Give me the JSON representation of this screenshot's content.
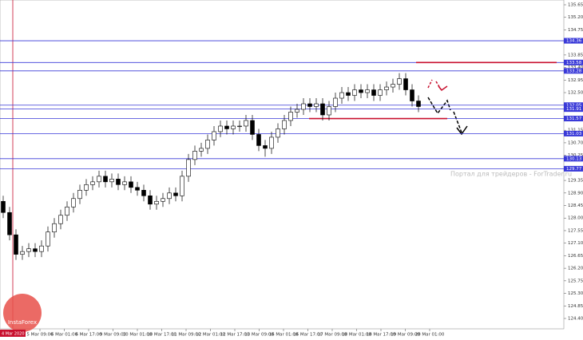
{
  "chart_data": {
    "type": "candlestick",
    "ylim": [
      124.4,
      135.65
    ],
    "yticks": [
      135.65,
      {
        "value": 135.2,
        "label": "135.20"
      },
      134.75,
      {
        "value": 134.3,
        "label": "134.30"
      },
      133.85,
      {
        "value": 133.4,
        "label": "133.40"
      },
      132.95,
      {
        "value": 132.5,
        "label": "132.50"
      },
      132.05,
      {
        "value": 131.6,
        "label": "131.60"
      },
      131.15,
      {
        "value": 130.7,
        "label": "130.70"
      },
      130.25,
      {
        "value": 129.8,
        "label": "129.80"
      },
      129.35,
      {
        "value": 128.9,
        "label": "128.90"
      },
      128.45,
      {
        "value": 128.0,
        "label": "128.00"
      },
      127.55,
      {
        "value": 127.1,
        "label": "127.10"
      },
      126.65,
      {
        "value": 126.2,
        "label": "126.20"
      },
      125.75,
      {
        "value": 125.3,
        "label": "125.30"
      },
      124.85,
      {
        "value": 124.4,
        "label": "124.40"
      }
    ],
    "time_labels": [
      "5 Mar 09:00",
      "6 Mar 01:00",
      "6 Mar 17:00",
      "9 Mar 09:00",
      "10 Mar 01:00",
      "10 Mar 17:00",
      "11 Mar 09:00",
      "12 Mar 01:00",
      "12 Mar 17:00",
      "13 Mar 09:00",
      "16 Mar 01:00",
      "16 Mar 17:00",
      "17 Mar 09:00",
      "18 Mar 01:00",
      "18 Mar 17:00",
      "19 Mar 09:00",
      "20 Mar 01:00"
    ],
    "start_label": "4 Mar 2020",
    "levels": [
      134.36,
      133.58,
      133.28,
      132.05,
      131.91,
      131.57,
      131.03,
      130.13,
      129.77
    ],
    "level_color": "#3a3ad8",
    "red_levels": [
      133.58,
      131.57
    ],
    "red_color": "#c8102e",
    "candle_color": "#000000",
    "watermark": "Портал для трейдеров - ForTrader.ru",
    "logo": "InstaForex",
    "ohlc": [
      [
        128.6,
        128.8,
        128.0,
        128.2
      ],
      [
        128.2,
        128.4,
        127.2,
        127.4
      ],
      [
        127.4,
        127.6,
        126.5,
        126.7
      ],
      [
        126.7,
        127.0,
        126.5,
        126.8
      ],
      [
        126.8,
        127.1,
        126.6,
        126.9
      ],
      [
        126.9,
        127.1,
        126.6,
        126.8
      ],
      [
        126.8,
        127.2,
        126.6,
        127.0
      ],
      [
        127.0,
        127.7,
        126.8,
        127.5
      ],
      [
        127.5,
        128.0,
        127.3,
        127.8
      ],
      [
        127.8,
        128.3,
        127.6,
        128.1
      ],
      [
        128.1,
        128.6,
        127.9,
        128.4
      ],
      [
        128.4,
        128.9,
        128.2,
        128.7
      ],
      [
        128.7,
        129.2,
        128.5,
        129.0
      ],
      [
        129.0,
        129.4,
        128.8,
        129.2
      ],
      [
        129.2,
        129.5,
        129.0,
        129.3
      ],
      [
        129.3,
        129.7,
        129.1,
        129.5
      ],
      [
        129.5,
        129.7,
        129.1,
        129.3
      ],
      [
        129.3,
        129.6,
        129.1,
        129.4
      ],
      [
        129.4,
        129.6,
        129.0,
        129.2
      ],
      [
        129.2,
        129.5,
        129.0,
        129.3
      ],
      [
        129.3,
        129.5,
        128.9,
        129.1
      ],
      [
        129.1,
        129.3,
        128.8,
        129.0
      ],
      [
        129.0,
        129.2,
        128.6,
        128.8
      ],
      [
        128.8,
        129.0,
        128.3,
        128.5
      ],
      [
        128.5,
        128.8,
        128.3,
        128.6
      ],
      [
        128.6,
        128.9,
        128.4,
        128.7
      ],
      [
        128.7,
        129.1,
        128.5,
        128.9
      ],
      [
        128.9,
        129.1,
        128.6,
        128.8
      ],
      [
        128.8,
        129.7,
        128.6,
        129.5
      ],
      [
        129.5,
        130.3,
        129.3,
        130.1
      ],
      [
        130.1,
        130.6,
        129.9,
        130.4
      ],
      [
        130.4,
        130.7,
        130.2,
        130.5
      ],
      [
        130.5,
        131.0,
        130.3,
        130.8
      ],
      [
        130.8,
        131.3,
        130.6,
        131.1
      ],
      [
        131.1,
        131.5,
        130.9,
        131.3
      ],
      [
        131.3,
        131.5,
        131.0,
        131.2
      ],
      [
        131.2,
        131.5,
        131.0,
        131.3
      ],
      [
        131.3,
        131.5,
        131.1,
        131.3
      ],
      [
        131.3,
        131.7,
        131.1,
        131.5
      ],
      [
        131.5,
        131.7,
        130.8,
        131.0
      ],
      [
        131.0,
        131.2,
        130.4,
        130.6
      ],
      [
        130.6,
        130.8,
        130.2,
        130.5
      ],
      [
        130.5,
        131.1,
        130.3,
        130.9
      ],
      [
        130.9,
        131.4,
        130.7,
        131.2
      ],
      [
        131.2,
        131.7,
        131.0,
        131.5
      ],
      [
        131.5,
        132.0,
        131.3,
        131.8
      ],
      [
        131.8,
        132.1,
        131.6,
        131.9
      ],
      [
        131.9,
        132.3,
        131.7,
        132.1
      ],
      [
        132.1,
        132.3,
        131.8,
        132.0
      ],
      [
        132.0,
        132.3,
        131.8,
        132.1
      ],
      [
        132.1,
        132.3,
        131.5,
        131.7
      ],
      [
        131.7,
        132.2,
        131.5,
        132.0
      ],
      [
        132.0,
        132.5,
        131.8,
        132.3
      ],
      [
        132.3,
        132.7,
        132.1,
        132.5
      ],
      [
        132.5,
        132.7,
        132.2,
        132.4
      ],
      [
        132.4,
        132.8,
        132.2,
        132.6
      ],
      [
        132.6,
        132.8,
        132.3,
        132.5
      ],
      [
        132.5,
        132.8,
        132.3,
        132.6
      ],
      [
        132.6,
        132.8,
        132.2,
        132.4
      ],
      [
        132.4,
        132.8,
        132.2,
        132.6
      ],
      [
        132.6,
        132.9,
        132.4,
        132.7
      ],
      [
        132.7,
        133.0,
        132.5,
        132.8
      ],
      [
        132.8,
        133.2,
        132.6,
        133.0
      ],
      [
        133.0,
        133.2,
        132.4,
        132.6
      ],
      [
        132.6,
        132.8,
        132.0,
        132.2
      ],
      [
        132.2,
        132.4,
        131.8,
        132.0
      ]
    ]
  }
}
